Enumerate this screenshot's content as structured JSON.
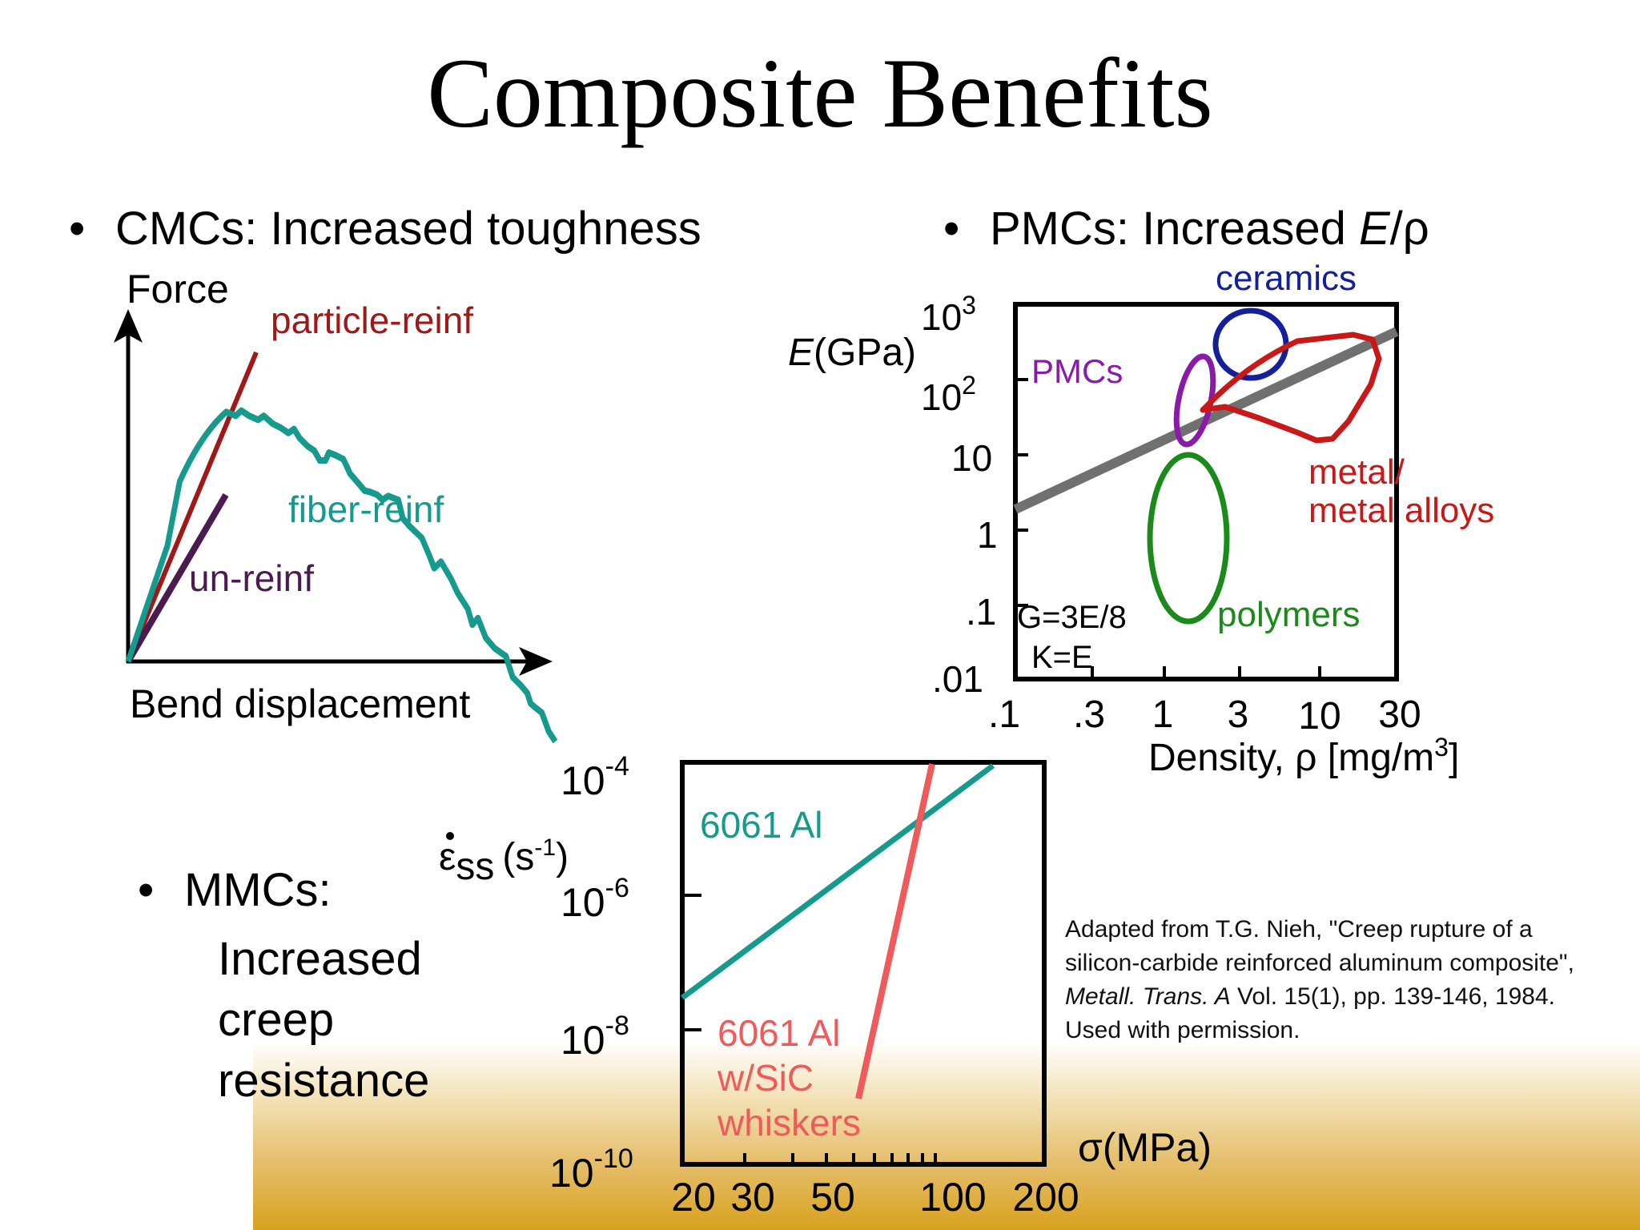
{
  "slide": {
    "title": "Composite Benefits"
  },
  "cmc": {
    "bullet": "CMCs:  Increased toughness",
    "y_label": "Force",
    "x_label": "Bend displacement",
    "labels": {
      "particle": "particle-reinf",
      "fiber": "fiber-reinf",
      "unreinf": "un-reinf"
    },
    "colors": {
      "particle": "#a01818",
      "fiber": "#169a8e",
      "unreinf": "#4a1a50"
    }
  },
  "pmc": {
    "bullet_prefix": "PMCs:  Increased ",
    "bullet_E": "E",
    "bullet_rho": "/ρ",
    "y_label_E": "E",
    "y_label_unit": "(GPa)",
    "y_ticks": [
      {
        "base": "10",
        "exp": "3"
      },
      {
        "base": "10",
        "exp": "2"
      },
      {
        "base": "10",
        "exp": ""
      },
      {
        "base": "1",
        "exp": ""
      },
      {
        "base": ".1",
        "exp": ""
      },
      {
        "base": ".01",
        "exp": ""
      }
    ],
    "x_ticks": [
      ".1",
      ".3",
      "1",
      "3",
      "10",
      "30"
    ],
    "x_label": "Density, ρ [mg/m",
    "x_label_sup": "3",
    "x_label_end": "]",
    "annotations": {
      "g_eq": "G=3E/8",
      "k_eq": "K=E"
    },
    "regions": {
      "ceramics": "ceramics",
      "pmcs": "PMCs",
      "metal_line1": "metal/",
      "metal_line2": "metal alloys",
      "polymers": "polymers"
    },
    "colors": {
      "ceramics": "#14209a",
      "pmcs": "#8a1aa8",
      "metals": "#c81818",
      "polymers": "#1a8a1a",
      "trend": "#707070"
    }
  },
  "mmc": {
    "bullet": "MMCs:",
    "lines": [
      "Increased",
      "creep",
      "resistance"
    ],
    "y_label_sym": "ε",
    "y_label_sub": "ss",
    "y_label_unit": "(s",
    "y_label_unit_sup": "-1",
    "y_label_unit_end": ")",
    "y_ticks": [
      {
        "base": "10",
        "exp": "-4"
      },
      {
        "base": "10",
        "exp": "-6"
      },
      {
        "base": "10",
        "exp": "-8"
      },
      {
        "base": "10",
        "exp": "-10"
      }
    ],
    "x_ticks": [
      "20",
      "30",
      "50",
      "100",
      "200"
    ],
    "x_label": "σ(MPa)",
    "series_1": "6061 Al",
    "series_2_lines": [
      "6061 Al",
      "w/SiC",
      "whiskers"
    ],
    "colors": {
      "series_1": "#169a8e",
      "series_2": "#f05a5a"
    }
  },
  "citation": {
    "line1": "Adapted from T.G. Nieh, \"Creep rupture of a",
    "line2": "silicon-carbide reinforced aluminum composite\",",
    "line3_italic": "Metall. Trans. A",
    "line3_rest": " Vol. 15(1), pp. 139-146, 1984.",
    "line4": "Used with permission."
  }
}
